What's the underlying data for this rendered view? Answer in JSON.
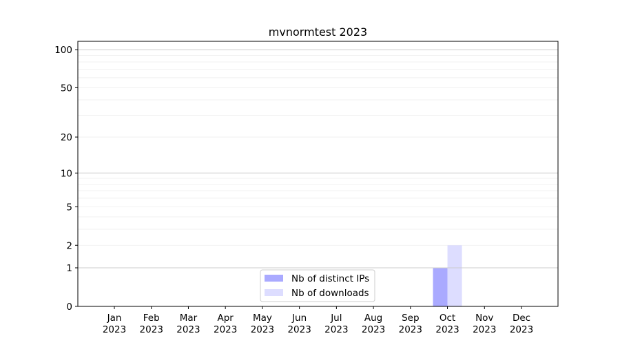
{
  "chart_data": {
    "type": "bar",
    "title": "mvnormtest 2023",
    "xlabel": "",
    "ylabel": "",
    "yscale": "log(1+y)",
    "ylim": [
      0,
      116
    ],
    "grid": true,
    "legend_position": "bottom-center",
    "categories": [
      "Jan\n2023",
      "Feb\n2023",
      "Mar\n2023",
      "Apr\n2023",
      "May\n2023",
      "Jun\n2023",
      "Jul\n2023",
      "Aug\n2023",
      "Sep\n2023",
      "Oct\n2023",
      "Nov\n2023",
      "Dec\n2023"
    ],
    "x_tick_labels": [
      [
        "Jan",
        "2023"
      ],
      [
        "Feb",
        "2023"
      ],
      [
        "Mar",
        "2023"
      ],
      [
        "Apr",
        "2023"
      ],
      [
        "May",
        "2023"
      ],
      [
        "Jun",
        "2023"
      ],
      [
        "Jul",
        "2023"
      ],
      [
        "Aug",
        "2023"
      ],
      [
        "Sep",
        "2023"
      ],
      [
        "Oct",
        "2023"
      ],
      [
        "Nov",
        "2023"
      ],
      [
        "Dec",
        "2023"
      ]
    ],
    "y_ticks": [
      0,
      1,
      2,
      5,
      10,
      20,
      50,
      100
    ],
    "y_tick_labels": [
      "0",
      "1",
      "2",
      "5",
      "10",
      "20",
      "50",
      "100"
    ],
    "series": [
      {
        "name": "Nb of distinct IPs",
        "color": "#aaaaff",
        "values": [
          0,
          0,
          0,
          0,
          0,
          0,
          0,
          0,
          0,
          1,
          0,
          0
        ]
      },
      {
        "name": "Nb of downloads",
        "color": "#ddddff",
        "values": [
          0,
          0,
          0,
          0,
          0,
          0,
          0,
          0,
          0,
          2,
          0,
          0
        ]
      }
    ]
  }
}
